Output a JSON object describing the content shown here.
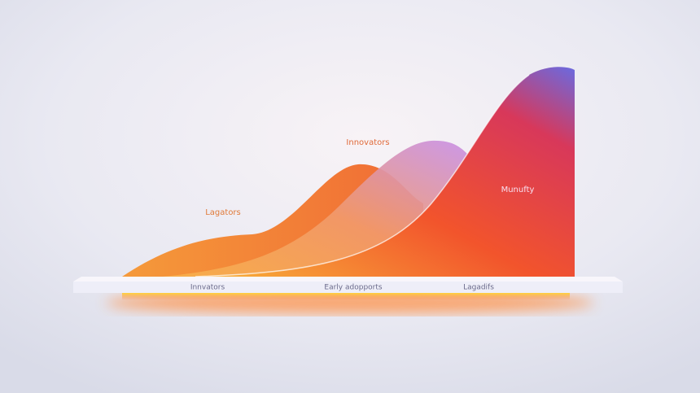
{
  "labels": {
    "curve_top": "Innovators",
    "curve_left": "Lagators",
    "curve_right": "Munufty"
  },
  "base_labels": [
    "Innvators",
    "Early adopports",
    "Lagadifs"
  ]
}
